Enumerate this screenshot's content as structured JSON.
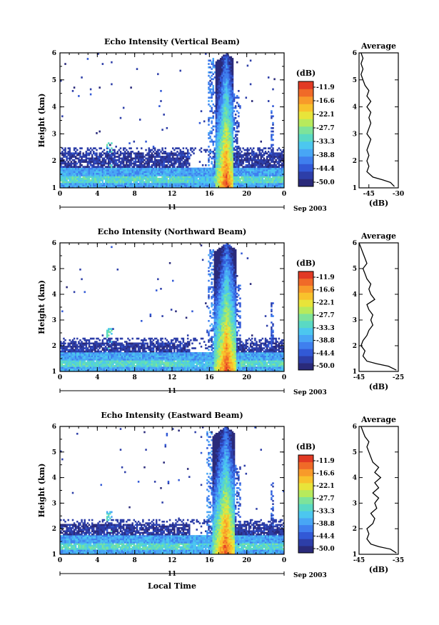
{
  "chart_data": [
    {
      "type": "heatmap",
      "title": "Echo Intensity (Vertical Beam)",
      "ylabel": "Height (km)",
      "xlabel": "",
      "xlim": [
        0,
        24
      ],
      "ylim": [
        1,
        6
      ],
      "x_ticks": [
        "0",
        "4",
        "8",
        "12",
        "16",
        "20",
        "0"
      ],
      "y_ticks": [
        "1",
        "2",
        "3",
        "4",
        "5",
        "6"
      ],
      "date_day": "11",
      "date_month": "Sep 2003",
      "colorbar": {
        "unit": "(dB)",
        "ticks": [
          "-11.9",
          "-16.6",
          "-22.1",
          "-27.7",
          "-33.3",
          "-38.8",
          "-44.4",
          "-50.0"
        ]
      },
      "features": {
        "storm_start": 16.6,
        "storm_end": 18.6,
        "storm_top": 6.0,
        "noise_top": 2.3,
        "gap_start": 14.0,
        "gap_end": 16.5
      },
      "profile": {
        "title": "Average",
        "xlabel": "(dB)",
        "xlim": [
          -50,
          -30
        ],
        "x_ticks": [
          "-45",
          "-30"
        ],
        "heights": [
          1.05,
          1.2,
          1.3,
          1.4,
          1.6,
          1.8,
          2.0,
          2.2,
          2.4,
          2.6,
          2.8,
          3.0,
          3.2,
          3.4,
          3.6,
          3.8,
          4.0,
          4.2,
          4.4,
          4.6,
          4.8,
          5.0,
          5.2,
          5.4,
          5.6,
          5.8,
          6.0
        ],
        "values": [
          -32,
          -34,
          -38,
          -43,
          -46,
          -45,
          -46,
          -45,
          -46,
          -45,
          -44,
          -46,
          -45,
          -44,
          -45,
          -44,
          -46,
          -44,
          -46,
          -45,
          -47,
          -48,
          -49,
          -48,
          -49,
          -48,
          -49
        ]
      }
    },
    {
      "type": "heatmap",
      "title": "Echo Intensity (Northward Beam)",
      "ylabel": "Height (km)",
      "xlabel": "",
      "xlim": [
        0,
        24
      ],
      "ylim": [
        1,
        6
      ],
      "x_ticks": [
        "0",
        "4",
        "8",
        "12",
        "16",
        "20",
        "0"
      ],
      "y_ticks": [
        "1",
        "2",
        "3",
        "4",
        "5",
        "6"
      ],
      "date_day": "11",
      "date_month": "Sep 2003",
      "colorbar": {
        "unit": "(dB)",
        "ticks": [
          "-11.9",
          "-16.6",
          "-22.1",
          "-27.7",
          "-33.3",
          "-38.8",
          "-44.4",
          "-50.0"
        ]
      },
      "features": {
        "storm_start": 16.5,
        "storm_end": 18.8,
        "storm_top": 6.0,
        "noise_top": 2.1,
        "gap_start": 14.0,
        "gap_end": 16.5
      },
      "profile": {
        "title": "Average",
        "xlabel": "(dB)",
        "xlim": [
          -45,
          -25
        ],
        "x_ticks": [
          "-45",
          "-25"
        ],
        "heights": [
          1.05,
          1.2,
          1.3,
          1.4,
          1.6,
          1.8,
          2.0,
          2.2,
          2.4,
          2.6,
          2.8,
          3.0,
          3.2,
          3.4,
          3.6,
          3.8,
          4.0,
          4.2,
          4.4,
          4.6,
          4.8,
          5.0,
          5.2,
          5.4,
          5.6,
          5.8,
          6.0
        ],
        "values": [
          -26,
          -30,
          -36,
          -41,
          -43,
          -42,
          -44,
          -43,
          -41,
          -40,
          -38,
          -39,
          -38,
          -40,
          -41,
          -37,
          -39,
          -40,
          -39,
          -41,
          -42,
          -43,
          -41,
          -42,
          -43,
          -44,
          -45
        ]
      }
    },
    {
      "type": "heatmap",
      "title": "Echo Intensity (Eastward Beam)",
      "ylabel": "Height (km)",
      "xlabel": "Local Time",
      "xlim": [
        0,
        24
      ],
      "ylim": [
        1,
        6
      ],
      "x_ticks": [
        "0",
        "4",
        "8",
        "12",
        "16",
        "20",
        "0"
      ],
      "y_ticks": [
        "1",
        "2",
        "3",
        "4",
        "5",
        "6"
      ],
      "date_day": "11",
      "date_month": "Sep 2003",
      "colorbar": {
        "unit": "(dB)",
        "ticks": [
          "-11.9",
          "-16.6",
          "-22.1",
          "-27.7",
          "-33.3",
          "-38.8",
          "-44.4",
          "-50.0"
        ]
      },
      "features": {
        "storm_start": 16.4,
        "storm_end": 18.7,
        "storm_top": 6.0,
        "noise_top": 2.2,
        "gap_start": 14.0,
        "gap_end": 16.4
      },
      "profile": {
        "title": "Average",
        "xlabel": "(dB)",
        "xlim": [
          -45,
          -35
        ],
        "x_ticks": [
          "-45",
          "-35"
        ],
        "heights": [
          1.05,
          1.2,
          1.3,
          1.4,
          1.6,
          1.8,
          2.0,
          2.2,
          2.4,
          2.6,
          2.8,
          3.0,
          3.2,
          3.4,
          3.6,
          3.8,
          4.0,
          4.2,
          4.4,
          4.6,
          4.8,
          5.0,
          5.2,
          5.4,
          5.6,
          5.8,
          6.0
        ],
        "values": [
          -35.5,
          -37,
          -40,
          -42,
          -43,
          -42.5,
          -43,
          -41.5,
          -41,
          -42,
          -40.5,
          -41,
          -40,
          -41.5,
          -40,
          -41,
          -39.5,
          -41,
          -40,
          -41.5,
          -42,
          -42.5,
          -43,
          -42.5,
          -43.5,
          -44,
          -44.5
        ]
      }
    }
  ],
  "palette": [
    "#2a2a7a",
    "#2d3ea8",
    "#3259d6",
    "#3f7fee",
    "#48a6f5",
    "#4cc7ef",
    "#5ad9c4",
    "#7ee39a",
    "#b7ea5c",
    "#e8e43a",
    "#f8c22c",
    "#f89a2a",
    "#f06a28",
    "#e23a24"
  ]
}
